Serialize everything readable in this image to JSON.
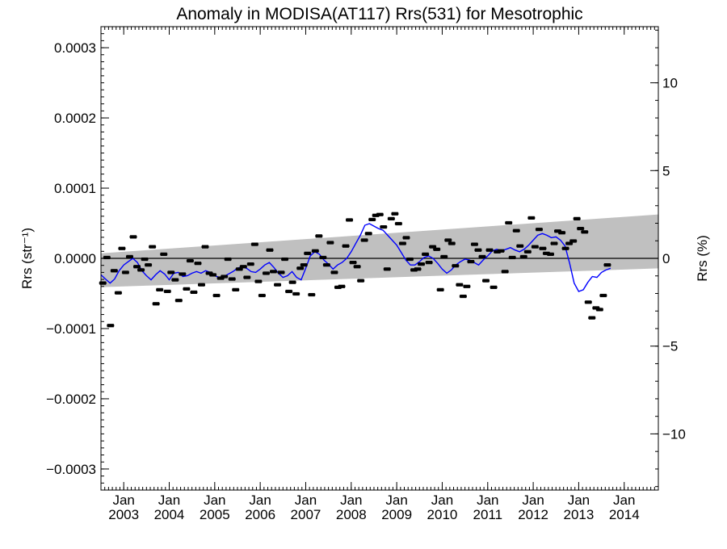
{
  "chart_data": {
    "type": "scatter",
    "title": "Anomaly in MODISA(AT117) Rrs(531) for Mesotrophic",
    "ylabel_left": "Rrs (str⁻¹)",
    "ylabel_right": "Rrs (%)",
    "xlim": [
      2002.5,
      2014.75
    ],
    "ylim": [
      -0.00033,
      0.00033
    ],
    "ylim_right": [
      -13.2,
      13.2
    ],
    "x_ticks": [
      {
        "x": 2003.0,
        "top": "Jan",
        "bottom": "2003"
      },
      {
        "x": 2004.0,
        "top": "Jan",
        "bottom": "2004"
      },
      {
        "x": 2005.0,
        "top": "Jan",
        "bottom": "2005"
      },
      {
        "x": 2006.0,
        "top": "Jan",
        "bottom": "2006"
      },
      {
        "x": 2007.0,
        "top": "Jan",
        "bottom": "2007"
      },
      {
        "x": 2008.0,
        "top": "Jan",
        "bottom": "2008"
      },
      {
        "x": 2009.0,
        "top": "Jan",
        "bottom": "2009"
      },
      {
        "x": 2010.0,
        "top": "Jan",
        "bottom": "2010"
      },
      {
        "x": 2011.0,
        "top": "Jan",
        "bottom": "2011"
      },
      {
        "x": 2012.0,
        "top": "Jan",
        "bottom": "2012"
      },
      {
        "x": 2013.0,
        "top": "Jan",
        "bottom": "2013"
      },
      {
        "x": 2014.0,
        "top": "Jan",
        "bottom": "2014"
      }
    ],
    "y_ticks_left": [
      {
        "value": 0.0003,
        "label": "0.0003"
      },
      {
        "value": 0.0002,
        "label": "0.0002"
      },
      {
        "value": 0.0001,
        "label": "0.0001"
      },
      {
        "value": 0.0,
        "label": "0.0000"
      },
      {
        "value": -0.0001,
        "label": "−0.0001"
      },
      {
        "value": -0.0002,
        "label": "−0.0002"
      },
      {
        "value": -0.0003,
        "label": "−0.0003"
      }
    ],
    "y_ticks_right": [
      {
        "value": 10,
        "label": "10"
      },
      {
        "value": 5,
        "label": "5"
      },
      {
        "value": 0,
        "label": "0"
      },
      {
        "value": -5,
        "label": "−5"
      },
      {
        "value": -10,
        "label": "−10"
      }
    ],
    "trend_band": {
      "x": [
        2002.5,
        2014.75
      ],
      "upper": [
        7.1e-06,
        6.25e-05
      ],
      "lower": [
        -4.11e-05,
        -1.43e-05
      ]
    },
    "zero_line": 0,
    "series": [
      {
        "role": "monthly anomalies",
        "style": "black markers with error bars",
        "points": [
          [
            2002.54,
            -3.52e-05
          ],
          [
            2002.63,
            1.2e-06
          ],
          [
            2002.71,
            -9.57e-05
          ],
          [
            2002.79,
            -1.76e-05
          ],
          [
            2002.88,
            -4.91e-05
          ],
          [
            2002.96,
            1.41e-05
          ],
          [
            2003.04,
            -2e-05
          ],
          [
            2003.13,
            2.4e-06
          ],
          [
            2003.21,
            3.06e-05
          ],
          [
            2003.29,
            -1.18e-05
          ],
          [
            2003.38,
            -1.65e-05
          ],
          [
            2003.46,
            -1.2e-06
          ],
          [
            2003.54,
            -9.4e-06
          ],
          [
            2003.63,
            1.65e-05
          ],
          [
            2003.71,
            -6.47e-05
          ],
          [
            2003.79,
            -4.47e-05
          ],
          [
            2003.88,
            5.9e-06
          ],
          [
            2003.96,
            -4.7e-05
          ],
          [
            2004.04,
            -2e-05
          ],
          [
            2004.13,
            -3.06e-05
          ],
          [
            2004.21,
            -6e-05
          ],
          [
            2004.29,
            -2.24e-05
          ],
          [
            2004.38,
            -4.35e-05
          ],
          [
            2004.46,
            -3.5e-06
          ],
          [
            2004.54,
            -4.82e-05
          ],
          [
            2004.63,
            -7.1e-06
          ],
          [
            2004.71,
            -3.76e-05
          ],
          [
            2004.79,
            1.65e-05
          ],
          [
            2004.88,
            -2.12e-05
          ],
          [
            2004.96,
            -2.35e-05
          ],
          [
            2005.04,
            -5.29e-05
          ],
          [
            2005.13,
            -2.82e-05
          ],
          [
            2005.21,
            -2.59e-05
          ],
          [
            2005.29,
            -1.2e-06
          ],
          [
            2005.38,
            -2.94e-05
          ],
          [
            2005.46,
            -4.47e-05
          ],
          [
            2005.54,
            -1.53e-05
          ],
          [
            2005.63,
            -1.18e-05
          ],
          [
            2005.71,
            -2.71e-05
          ],
          [
            2005.79,
            -8.2e-06
          ],
          [
            2005.88,
            2e-05
          ],
          [
            2005.96,
            -3.29e-05
          ],
          [
            2006.04,
            -5.29e-05
          ],
          [
            2006.13,
            -2.12e-05
          ],
          [
            2006.21,
            1.18e-05
          ],
          [
            2006.29,
            -1.88e-05
          ],
          [
            2006.38,
            -3.76e-05
          ],
          [
            2006.46,
            -2e-05
          ],
          [
            2006.54,
            -1.2e-06
          ],
          [
            2006.63,
            -4.71e-05
          ],
          [
            2006.71,
            -3.41e-05
          ],
          [
            2006.79,
            -5.06e-05
          ],
          [
            2006.88,
            -1.41e-05
          ],
          [
            2006.96,
            -9.4e-06
          ],
          [
            2007.04,
            7.1e-06
          ],
          [
            2007.13,
            -5.18e-05
          ],
          [
            2007.21,
            1.06e-05
          ],
          [
            2007.29,
            3.18e-05
          ],
          [
            2007.38,
            1.2e-06
          ],
          [
            2007.46,
            -9.4e-06
          ],
          [
            2007.54,
            2.24e-05
          ],
          [
            2007.63,
            -2e-05
          ],
          [
            2007.71,
            -4.12e-05
          ],
          [
            2007.79,
            -4e-05
          ],
          [
            2007.88,
            1.76e-05
          ],
          [
            2007.96,
            5.47e-05
          ],
          [
            2008.04,
            -5.9e-06
          ],
          [
            2008.13,
            -1.18e-05
          ],
          [
            2008.21,
            -3.18e-05
          ],
          [
            2008.29,
            2.59e-05
          ],
          [
            2008.38,
            3.53e-05
          ],
          [
            2008.46,
            5.53e-05
          ],
          [
            2008.54,
            6.12e-05
          ],
          [
            2008.63,
            6.24e-05
          ],
          [
            2008.71,
            4.47e-05
          ],
          [
            2008.79,
            -1.53e-05
          ],
          [
            2008.88,
            5.65e-05
          ],
          [
            2008.96,
            6.35e-05
          ],
          [
            2009.04,
            4.94e-05
          ],
          [
            2009.13,
            2.12e-05
          ],
          [
            2009.21,
            2.94e-05
          ],
          [
            2009.29,
            -1.2e-06
          ],
          [
            2009.38,
            -1.65e-05
          ],
          [
            2009.46,
            -1.53e-05
          ],
          [
            2009.54,
            -8.2e-06
          ],
          [
            2009.63,
            5.9e-06
          ],
          [
            2009.71,
            -5.9e-06
          ],
          [
            2009.79,
            1.65e-05
          ],
          [
            2009.88,
            1.29e-05
          ],
          [
            2009.96,
            -4.47e-05
          ],
          [
            2010.04,
            2.4e-06
          ],
          [
            2010.13,
            2.59e-05
          ],
          [
            2010.21,
            2.12e-05
          ],
          [
            2010.29,
            -1.06e-05
          ],
          [
            2010.38,
            -3.76e-05
          ],
          [
            2010.46,
            -5.41e-05
          ],
          [
            2010.54,
            -4e-05
          ],
          [
            2010.63,
            -4.7e-06
          ],
          [
            2010.71,
            2e-05
          ],
          [
            2010.79,
            1.18e-05
          ],
          [
            2010.88,
            2.4e-06
          ],
          [
            2010.96,
            -3.18e-05
          ],
          [
            2011.04,
            1.18e-05
          ],
          [
            2011.13,
            -4.12e-05
          ],
          [
            2011.21,
            9.4e-06
          ],
          [
            2011.29,
            1.06e-05
          ],
          [
            2011.38,
            -1.88e-05
          ],
          [
            2011.46,
            5.06e-05
          ],
          [
            2011.54,
            1.2e-06
          ],
          [
            2011.63,
            3.94e-05
          ],
          [
            2011.71,
            1.76e-05
          ],
          [
            2011.79,
            2.4e-06
          ],
          [
            2011.88,
            9.4e-06
          ],
          [
            2011.96,
            5.76e-05
          ],
          [
            2012.04,
            1.65e-05
          ],
          [
            2012.13,
            4.12e-05
          ],
          [
            2012.21,
            1.41e-05
          ],
          [
            2012.29,
            7.1e-06
          ],
          [
            2012.38,
            5.9e-06
          ],
          [
            2012.46,
            2.12e-05
          ],
          [
            2012.54,
            3.88e-05
          ],
          [
            2012.63,
            3.65e-05
          ],
          [
            2012.71,
            1.41e-05
          ],
          [
            2012.79,
            2.12e-05
          ],
          [
            2012.88,
            2.47e-05
          ],
          [
            2012.96,
            5.65e-05
          ],
          [
            2013.04,
            4.24e-05
          ],
          [
            2013.13,
            3.76e-05
          ],
          [
            2013.21,
            -6.24e-05
          ],
          [
            2013.29,
            -8.47e-05
          ],
          [
            2013.38,
            -7.06e-05
          ],
          [
            2013.46,
            -7.29e-05
          ],
          [
            2013.54,
            -5.29e-05
          ],
          [
            2013.63,
            -9.4e-06
          ]
        ]
      },
      {
        "role": "running mean",
        "color": "#0000ff",
        "x": [
          2002.5,
          2002.6,
          2002.7,
          2002.8,
          2002.9,
          2003.0,
          2003.1,
          2003.2,
          2003.3,
          2003.4,
          2003.5,
          2003.6,
          2003.7,
          2003.8,
          2003.9,
          2004.0,
          2004.1,
          2004.2,
          2004.3,
          2004.4,
          2004.5,
          2004.6,
          2004.7,
          2004.8,
          2004.9,
          2005.0,
          2005.1,
          2005.2,
          2005.3,
          2005.4,
          2005.5,
          2005.6,
          2005.7,
          2005.8,
          2005.9,
          2006.0,
          2006.1,
          2006.2,
          2006.3,
          2006.4,
          2006.5,
          2006.6,
          2006.7,
          2006.8,
          2006.9,
          2007.0,
          2007.1,
          2007.2,
          2007.3,
          2007.4,
          2007.5,
          2007.6,
          2007.7,
          2007.8,
          2007.9,
          2008.0,
          2008.1,
          2008.2,
          2008.3,
          2008.4,
          2008.5,
          2008.6,
          2008.7,
          2008.8,
          2008.9,
          2009.0,
          2009.1,
          2009.2,
          2009.3,
          2009.4,
          2009.5,
          2009.6,
          2009.7,
          2009.8,
          2009.9,
          2010.0,
          2010.1,
          2010.2,
          2010.3,
          2010.4,
          2010.5,
          2010.6,
          2010.7,
          2010.8,
          2010.9,
          2011.0,
          2011.1,
          2011.2,
          2011.3,
          2011.4,
          2011.5,
          2011.6,
          2011.7,
          2011.8,
          2011.9,
          2012.0,
          2012.1,
          2012.2,
          2012.3,
          2012.4,
          2012.5,
          2012.6,
          2012.7,
          2012.8,
          2012.9,
          2013.0,
          2013.1,
          2013.2,
          2013.3,
          2013.4,
          2013.5,
          2013.6,
          2013.7
        ],
        "y": [
          -2.35e-05,
          -2.94e-05,
          -3.53e-05,
          -2.94e-05,
          -1.76e-05,
          -9.4e-06,
          -4.7e-06,
          0.0,
          -5.9e-06,
          -1.76e-05,
          -2.47e-05,
          -3.06e-05,
          -2.35e-05,
          -1.76e-05,
          -2.24e-05,
          -3.06e-05,
          -2.12e-05,
          -2e-05,
          -2.59e-05,
          -2.47e-05,
          -2.12e-05,
          -1.88e-05,
          -2.12e-05,
          -1.76e-05,
          -2e-05,
          -2.47e-05,
          -2.71e-05,
          -2.59e-05,
          -2.24e-05,
          -1.88e-05,
          -1.41e-05,
          -1.18e-05,
          -1.41e-05,
          -1.88e-05,
          -2e-05,
          -1.53e-05,
          -9.4e-06,
          -5.9e-06,
          -1.29e-05,
          -2.12e-05,
          -2.71e-05,
          -2.47e-05,
          -1.88e-05,
          -2.71e-05,
          -3.06e-05,
          -1.41e-05,
          3.5e-06,
          9.4e-06,
          5.9e-06,
          -2.4e-06,
          -8.2e-06,
          -1.53e-05,
          -9.4e-06,
          -5.9e-06,
          0.0,
          9.4e-06,
          2.12e-05,
          3.29e-05,
          4.71e-05,
          4.94e-05,
          4.59e-05,
          4.24e-05,
          4e-05,
          3.29e-05,
          2.59e-05,
          1.88e-05,
          8.2e-06,
          -2.4e-06,
          -9.4e-06,
          -9.4e-06,
          -4.7e-06,
          1.2e-06,
          3.5e-06,
          0.0,
          -7.1e-06,
          -1.53e-05,
          -2.12e-05,
          -1.65e-05,
          -9.4e-06,
          -4.7e-06,
          -1.2e-06,
          -2.4e-06,
          -5.9e-06,
          -9.4e-06,
          -2.4e-06,
          3.5e-06,
          1.06e-05,
          1.29e-05,
          1.06e-05,
          1.29e-05,
          1.53e-05,
          1.18e-05,
          9.4e-06,
          1.29e-05,
          1.88e-05,
          2.59e-05,
          3.29e-05,
          3.53e-05,
          3.29e-05,
          2.94e-05,
          3.06e-05,
          2.59e-05,
          1.76e-05,
          -7.1e-06,
          -3.53e-05,
          -4.71e-05,
          -4.47e-05,
          -3.41e-05,
          -2.59e-05,
          -2.71e-05,
          -2e-05,
          -1.65e-05,
          -1.41e-05
        ]
      }
    ],
    "grid": false,
    "legend": "none",
    "colors": {
      "band_fill": "#c0c0c0",
      "running_mean": "#0000ff",
      "markers": "#000000",
      "zero_line": "#000000"
    }
  }
}
